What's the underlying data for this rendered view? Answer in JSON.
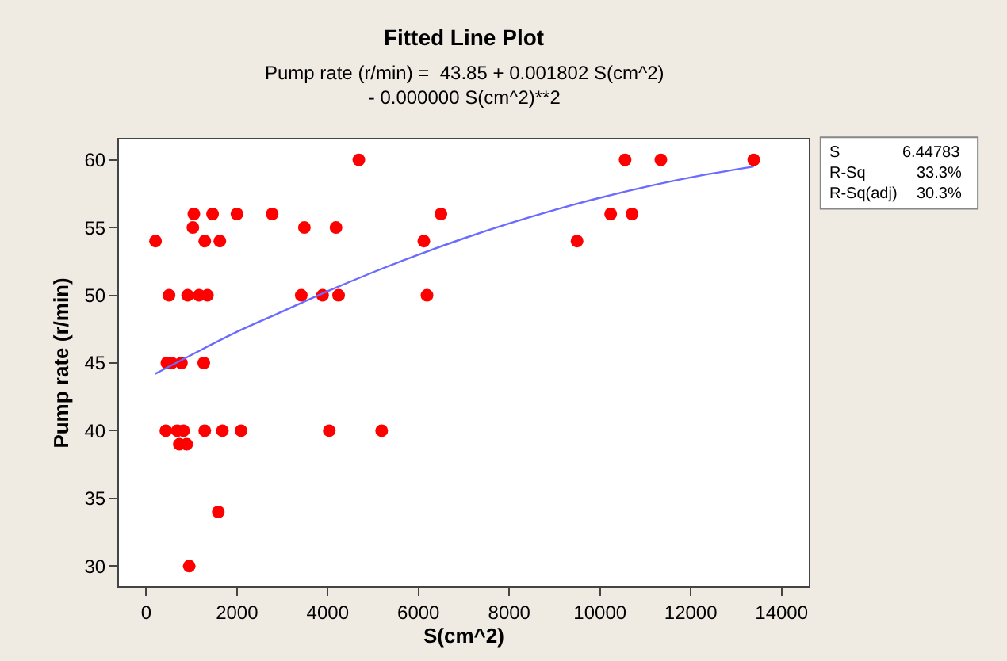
{
  "chart_data": {
    "type": "scatter",
    "title": "Fitted Line Plot",
    "subtitle": "Pump rate (r/min) =  43.85 + 0.001802 S(cm^2)\n- 0.000000 S(cm^2)**2",
    "xlabel": "S(cm^2)",
    "ylabel": "Pump rate (r/min)",
    "xlim": [
      -600,
      14600
    ],
    "xticks": [
      0,
      2000,
      4000,
      6000,
      8000,
      10000,
      12000,
      14000
    ],
    "ylim": [
      28.5,
      61.5
    ],
    "yticks": [
      30,
      35,
      40,
      45,
      50,
      55,
      60
    ],
    "marker": "circle",
    "series": [
      {
        "color": "#ff0000",
        "x": [
          206,
          1051,
          1463,
          2000,
          2777,
          1029,
          3486,
          4183,
          1291,
          1623,
          4686,
          503,
          914,
          1166,
          1349,
          3417,
          3886,
          4240,
          457,
          560,
          777,
          1269,
          434,
          686,
          823,
          1291,
          1680,
          2091,
          4034,
          5189,
          731,
          891,
          1589,
          949,
          6118,
          6188,
          6494,
          9494,
          10235,
          10553,
          10706,
          11341,
          13388
        ],
        "values": [
          54,
          56,
          56,
          56,
          56,
          55,
          55,
          55,
          54,
          54,
          60,
          50,
          50,
          50,
          50,
          50,
          50,
          50,
          45,
          45,
          45,
          45,
          40,
          40,
          40,
          40,
          40,
          40,
          40,
          40,
          39,
          39,
          34,
          30,
          54,
          50,
          56,
          54,
          56,
          60,
          56,
          60,
          60
        ]
      },
      {
        "type": "line",
        "marker": "none",
        "color": "#6b6bff",
        "x": [
          200,
          1000,
          2000,
          3000,
          4000,
          5000,
          6000,
          7000,
          8000,
          9000,
          10000,
          11000,
          12000,
          13388
        ],
        "values": [
          44.2,
          45.6,
          47.3,
          48.8,
          50.3,
          51.7,
          53.0,
          54.2,
          55.3,
          56.3,
          57.2,
          58.0,
          58.7,
          59.5
        ]
      }
    ],
    "annotations": [
      "S",
      "6.44783",
      "R-Sq",
      "33.3%",
      "R-Sq(adj)",
      "30.3%"
    ]
  }
}
